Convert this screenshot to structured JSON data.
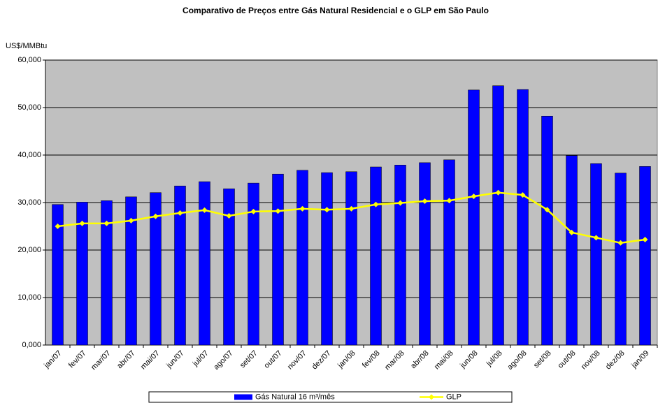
{
  "chart_data": {
    "type": "bar_line",
    "title": "Comparativo de Preços entre Gás Natural Residencial e o GLP em São Paulo",
    "y_label": "US$/MMBtu",
    "categories": [
      "jan/07",
      "fev/07",
      "mar/07",
      "abr/07",
      "mai/07",
      "jun/07",
      "jul/07",
      "ago/07",
      "set/07",
      "out/07",
      "nov/07",
      "dez/07",
      "jan/08",
      "fev/08",
      "mar/08",
      "abr/08",
      "mai/08",
      "jun/08",
      "jul/08",
      "ago/08",
      "set/08",
      "out/08",
      "nov/08",
      "dez/08",
      "jan/09"
    ],
    "series": [
      {
        "name": "Gás Natural 16 m³/mês",
        "type": "bar",
        "color": "#0000ff",
        "values": [
          29.6,
          30.1,
          30.4,
          31.2,
          32.1,
          33.5,
          34.4,
          32.9,
          34.1,
          36.0,
          36.8,
          36.3,
          36.5,
          37.5,
          37.9,
          38.4,
          39.0,
          53.7,
          54.6,
          53.8,
          48.2,
          39.9,
          38.2,
          36.2,
          37.6
        ]
      },
      {
        "name": "GLP",
        "type": "line",
        "color": "#ffff00",
        "values": [
          25.0,
          25.6,
          25.6,
          26.2,
          27.1,
          27.8,
          28.4,
          27.2,
          28.1,
          28.2,
          28.7,
          28.5,
          28.7,
          29.6,
          29.9,
          30.3,
          30.4,
          31.3,
          32.1,
          31.6,
          28.5,
          23.7,
          22.6,
          21.5,
          22.2
        ]
      }
    ],
    "ylim": [
      0,
      60
    ],
    "yticks": [
      {
        "value": 0,
        "label": "0,000"
      },
      {
        "value": 10,
        "label": "10,000"
      },
      {
        "value": 20,
        "label": "20,000"
      },
      {
        "value": 30,
        "label": "30,000"
      },
      {
        "value": 40,
        "label": "40,000"
      },
      {
        "value": 50,
        "label": "50,000"
      },
      {
        "value": 60,
        "label": "60,000"
      }
    ],
    "grid": true,
    "legend": "bottom",
    "plot_background": "#c0c0c0"
  }
}
